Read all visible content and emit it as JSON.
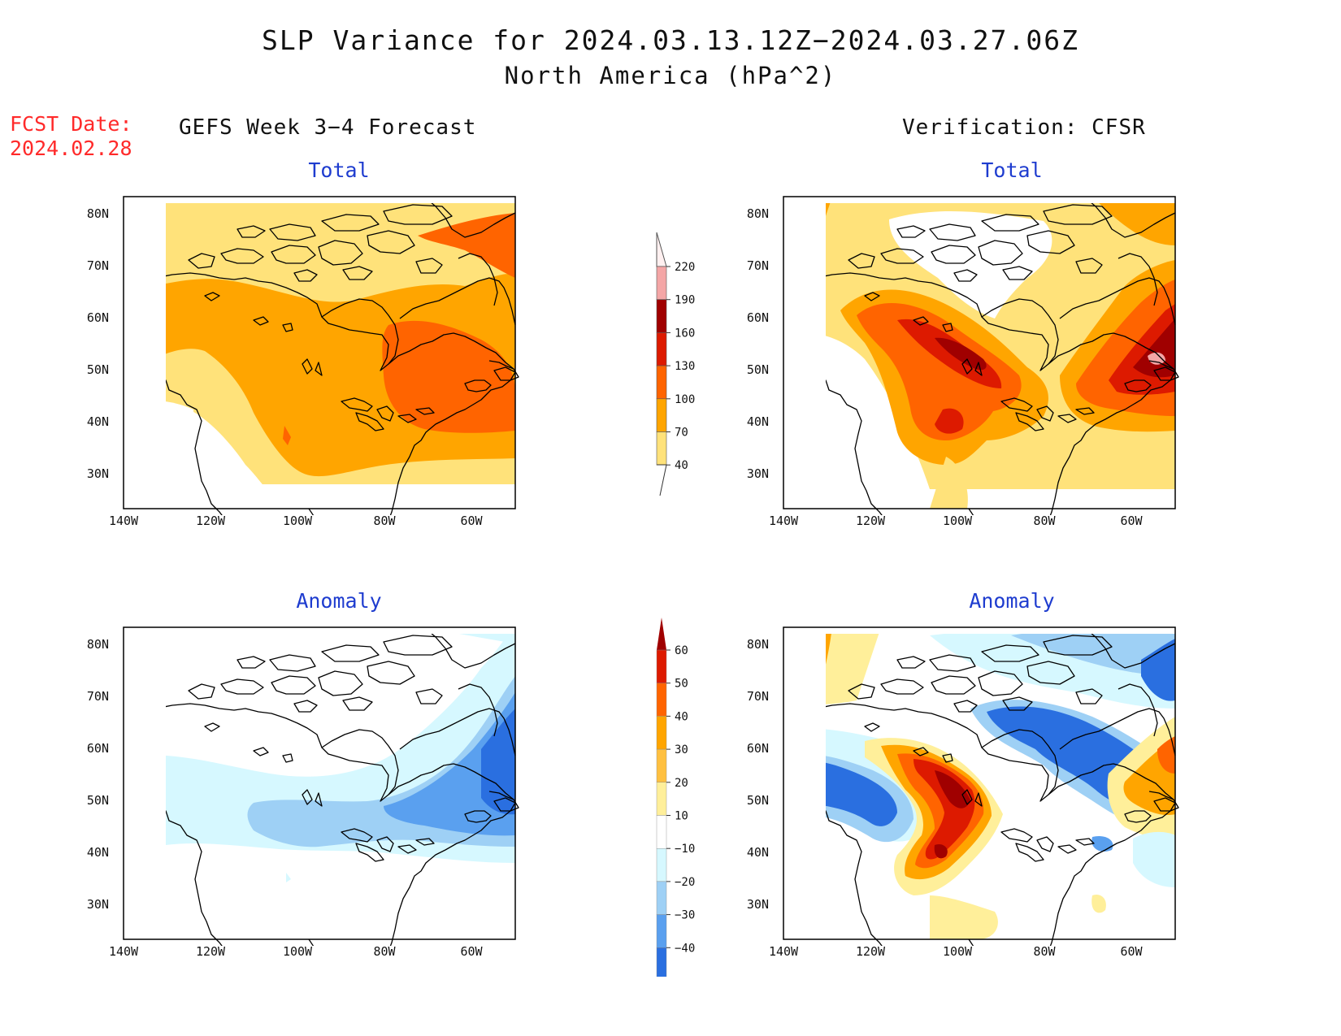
{
  "title": "SLP Variance for 2024.03.13.12Z−2024.03.27.06Z",
  "subtitle": "North America (hPa^2)",
  "fcst_label": "FCST Date:",
  "fcst_date": "2024.02.28",
  "left_column_title": "GEFS Week 3−4 Forecast",
  "right_column_title": "Verification: CFSR",
  "panels": {
    "forecast_total": {
      "title": "Total"
    },
    "verification_total": {
      "title": "Total"
    },
    "forecast_anomaly": {
      "title": "Anomaly"
    },
    "verification_anomaly": {
      "title": "Anomaly"
    }
  },
  "axes": {
    "lat_ticks": [
      "80N",
      "70N",
      "60N",
      "50N",
      "40N",
      "30N"
    ],
    "lon_ticks": [
      "140W",
      "120W",
      "100W",
      "80W",
      "60W"
    ]
  },
  "colorbar_total": {
    "labels": [
      "220",
      "190",
      "160",
      "130",
      "100",
      "70",
      "40"
    ],
    "colors": [
      "#fff0f0",
      "#f4a6a6",
      "#a00000",
      "#dd1a00",
      "#ff6400",
      "#ffa500",
      "#ffe27a"
    ]
  },
  "colorbar_anomaly": {
    "labels": [
      "60",
      "50",
      "40",
      "30",
      "20",
      "10",
      "−10",
      "−20",
      "−30",
      "−40"
    ],
    "colors": [
      "#a00000",
      "#dd1a00",
      "#ff6400",
      "#ffa500",
      "#ffc040",
      "#ffef9a",
      "#ffffff",
      "#d6f8ff",
      "#9ed0f5",
      "#5aa0ef",
      "#2a6fe0",
      "#1450c8"
    ]
  }
}
